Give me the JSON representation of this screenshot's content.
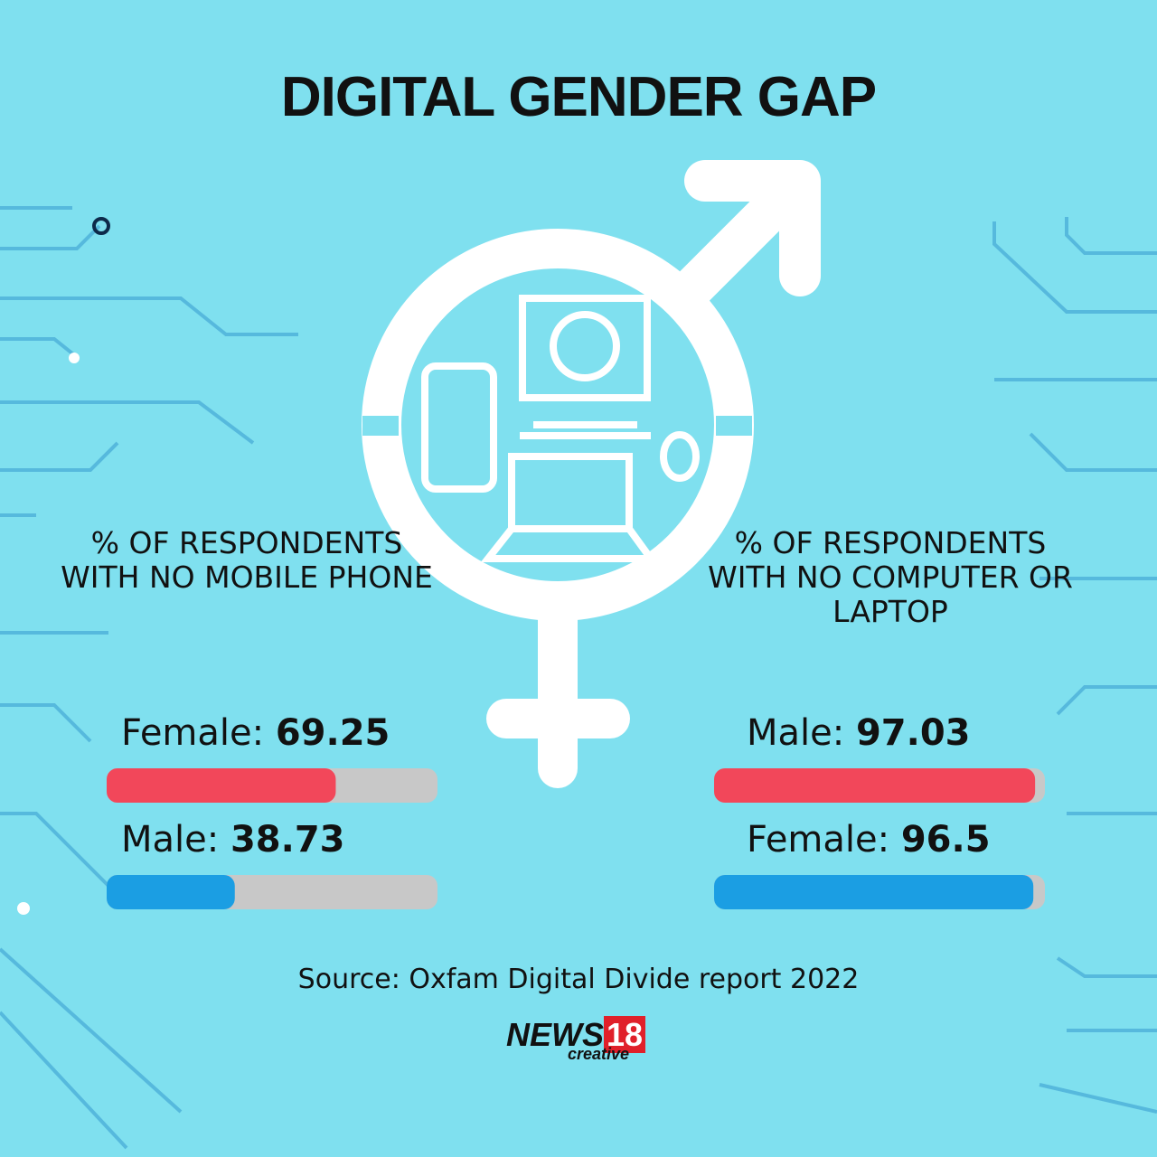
{
  "title": "DIGITAL GENDER GAP",
  "chart_data": [
    {
      "type": "hbar",
      "title": "% OF RESPONDENTS WITH NO MOBILE PHONE",
      "categories": [
        "Female:",
        "Male:"
      ],
      "values": [
        69.25,
        38.73
      ],
      "colors": [
        "#f2475a",
        "#1b9ee3"
      ],
      "xlim": [
        0,
        100
      ]
    },
    {
      "type": "hbar",
      "title": "% OF RESPONDENTS WITH NO COMPUTER OR LAPTOP",
      "categories": [
        "Male:",
        "Female:"
      ],
      "values": [
        97.03,
        96.5
      ],
      "colors": [
        "#f2475a",
        "#1b9ee3"
      ],
      "xlim": [
        0,
        100
      ]
    }
  ],
  "source": "Source: Oxfam Digital Divide report 2022",
  "logo": {
    "brand": "NEWS",
    "number": "18",
    "tag": "creative"
  }
}
